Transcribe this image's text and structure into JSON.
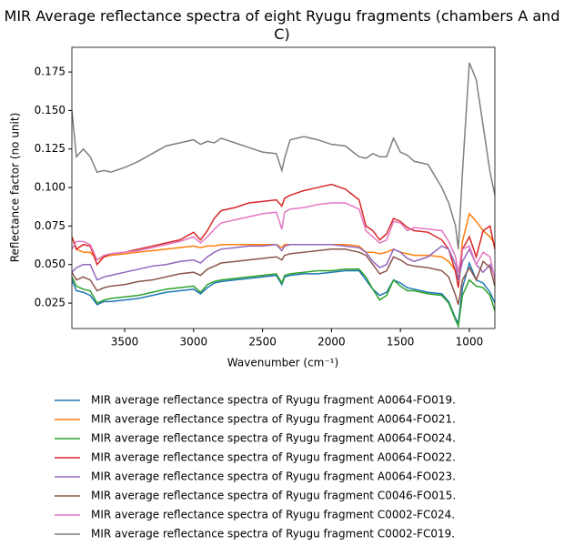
{
  "chart_data": {
    "type": "line",
    "title": "MIR Average reflectance spectra of eight Ryugu fragments (chambers A and C)",
    "xlabel": "Wavenumber (cm⁻¹)",
    "ylabel": "Reflectance factor (no unit)",
    "xlim": [
      3883,
      815
    ],
    "ylim": [
      0.0085,
      0.191
    ],
    "xticks": [
      3500,
      3000,
      2500,
      2000,
      1500,
      1000
    ],
    "yticks": [
      0.025,
      {
        "value": 0.05,
        "label": "0.050"
      },
      0.075,
      {
        "value": 0.1,
        "label": "0.100"
      },
      0.125,
      {
        "value": 0.15,
        "label": "0.150"
      },
      0.175
    ],
    "legend": "below",
    "x": [
      3883,
      3850,
      3800,
      3750,
      3700,
      3650,
      3600,
      3500,
      3400,
      3300,
      3200,
      3100,
      3000,
      2950,
      2900,
      2850,
      2800,
      2700,
      2600,
      2500,
      2400,
      2360,
      2340,
      2300,
      2200,
      2100,
      2000,
      1900,
      1800,
      1750,
      1700,
      1650,
      1600,
      1550,
      1500,
      1450,
      1400,
      1300,
      1200,
      1150,
      1100,
      1080,
      1050,
      1000,
      950,
      900,
      850,
      815
    ],
    "series": [
      {
        "name": "MIR average reflectance spectra of Ryugu fragment A0064-FO019.",
        "color": "#1f77b4",
        "values": [
          0.04,
          0.033,
          0.032,
          0.03,
          0.024,
          0.026,
          0.026,
          0.027,
          0.028,
          0.03,
          0.032,
          0.033,
          0.034,
          0.031,
          0.035,
          0.038,
          0.039,
          0.04,
          0.041,
          0.042,
          0.043,
          0.037,
          0.042,
          0.043,
          0.044,
          0.044,
          0.045,
          0.046,
          0.046,
          0.04,
          0.034,
          0.03,
          0.032,
          0.04,
          0.038,
          0.035,
          0.034,
          0.032,
          0.031,
          0.026,
          0.015,
          0.012,
          0.035,
          0.051,
          0.04,
          0.038,
          0.032,
          0.025
        ]
      },
      {
        "name": "MIR average reflectance spectra of Ryugu fragment A0064-FO021.",
        "color": "#ff7f0e",
        "values": [
          0.068,
          0.06,
          0.058,
          0.058,
          0.053,
          0.055,
          0.056,
          0.057,
          0.058,
          0.059,
          0.06,
          0.061,
          0.062,
          0.061,
          0.062,
          0.062,
          0.063,
          0.063,
          0.063,
          0.063,
          0.063,
          0.061,
          0.063,
          0.063,
          0.063,
          0.063,
          0.063,
          0.063,
          0.062,
          0.058,
          0.058,
          0.057,
          0.058,
          0.06,
          0.058,
          0.057,
          0.056,
          0.056,
          0.055,
          0.052,
          0.046,
          0.04,
          0.065,
          0.083,
          0.078,
          0.072,
          0.068,
          0.063
        ]
      },
      {
        "name": "MIR average reflectance spectra of Ryugu fragment A0064-FO024.",
        "color": "#2ca02c",
        "values": [
          0.042,
          0.036,
          0.034,
          0.033,
          0.025,
          0.027,
          0.028,
          0.029,
          0.03,
          0.032,
          0.034,
          0.035,
          0.036,
          0.032,
          0.037,
          0.039,
          0.04,
          0.041,
          0.042,
          0.043,
          0.044,
          0.038,
          0.043,
          0.044,
          0.045,
          0.046,
          0.046,
          0.047,
          0.047,
          0.042,
          0.034,
          0.027,
          0.03,
          0.04,
          0.036,
          0.033,
          0.033,
          0.031,
          0.03,
          0.025,
          0.014,
          0.01,
          0.03,
          0.04,
          0.036,
          0.035,
          0.03,
          0.02
        ]
      },
      {
        "name": "MIR average reflectance spectra of Ryugu fragment A0064-FO022.",
        "color": "#d62728",
        "values": [
          0.068,
          0.06,
          0.063,
          0.062,
          0.05,
          0.055,
          0.057,
          0.058,
          0.06,
          0.062,
          0.064,
          0.066,
          0.071,
          0.066,
          0.072,
          0.08,
          0.085,
          0.087,
          0.09,
          0.091,
          0.092,
          0.088,
          0.093,
          0.095,
          0.098,
          0.1,
          0.102,
          0.099,
          0.092,
          0.075,
          0.072,
          0.066,
          0.07,
          0.08,
          0.078,
          0.074,
          0.072,
          0.071,
          0.066,
          0.06,
          0.045,
          0.035,
          0.06,
          0.068,
          0.055,
          0.072,
          0.075,
          0.06
        ]
      },
      {
        "name": "MIR average reflectance spectra of Ryugu fragment A0064-FO023.",
        "color": "#9467bd",
        "values": [
          0.045,
          0.048,
          0.05,
          0.05,
          0.04,
          0.042,
          0.043,
          0.045,
          0.047,
          0.049,
          0.05,
          0.052,
          0.053,
          0.051,
          0.055,
          0.058,
          0.06,
          0.061,
          0.062,
          0.062,
          0.063,
          0.059,
          0.062,
          0.063,
          0.063,
          0.063,
          0.063,
          0.062,
          0.061,
          0.058,
          0.052,
          0.048,
          0.05,
          0.06,
          0.058,
          0.054,
          0.052,
          0.055,
          0.062,
          0.06,
          0.05,
          0.04,
          0.052,
          0.06,
          0.05,
          0.045,
          0.05,
          0.042
        ]
      },
      {
        "name": "MIR average reflectance spectra of Ryugu fragment C0046-FO015.",
        "color": "#8c564b",
        "values": [
          0.045,
          0.04,
          0.042,
          0.04,
          0.033,
          0.035,
          0.036,
          0.037,
          0.039,
          0.04,
          0.042,
          0.044,
          0.045,
          0.043,
          0.047,
          0.049,
          0.051,
          0.052,
          0.053,
          0.054,
          0.055,
          0.053,
          0.056,
          0.057,
          0.058,
          0.059,
          0.06,
          0.06,
          0.058,
          0.056,
          0.05,
          0.044,
          0.046,
          0.055,
          0.053,
          0.05,
          0.049,
          0.048,
          0.046,
          0.042,
          0.03,
          0.024,
          0.04,
          0.048,
          0.04,
          0.052,
          0.048,
          0.036
        ]
      },
      {
        "name": "MIR average reflectance spectra of Ryugu fragment C0002-FC024.",
        "color": "#e377c2",
        "values": [
          0.06,
          0.065,
          0.065,
          0.063,
          0.053,
          0.056,
          0.057,
          0.058,
          0.059,
          0.061,
          0.063,
          0.065,
          0.068,
          0.064,
          0.068,
          0.073,
          0.077,
          0.079,
          0.081,
          0.083,
          0.084,
          0.073,
          0.084,
          0.086,
          0.087,
          0.089,
          0.09,
          0.09,
          0.086,
          0.072,
          0.068,
          0.064,
          0.066,
          0.078,
          0.077,
          0.072,
          0.074,
          0.073,
          0.072,
          0.065,
          0.055,
          0.045,
          0.06,
          0.062,
          0.05,
          0.058,
          0.055,
          0.04
        ]
      },
      {
        "name": "MIR average reflectance spectra of Ryugu fragment C0002-FC019.",
        "color": "#7f7f7f",
        "values": [
          0.15,
          0.12,
          0.125,
          0.12,
          0.11,
          0.111,
          0.11,
          0.113,
          0.117,
          0.122,
          0.127,
          0.129,
          0.131,
          0.128,
          0.13,
          0.129,
          0.132,
          0.129,
          0.126,
          0.123,
          0.122,
          0.111,
          0.119,
          0.131,
          0.133,
          0.131,
          0.128,
          0.127,
          0.12,
          0.119,
          0.122,
          0.12,
          0.12,
          0.132,
          0.123,
          0.121,
          0.117,
          0.115,
          0.1,
          0.09,
          0.075,
          0.06,
          0.11,
          0.181,
          0.17,
          0.14,
          0.11,
          0.095
        ]
      }
    ]
  }
}
